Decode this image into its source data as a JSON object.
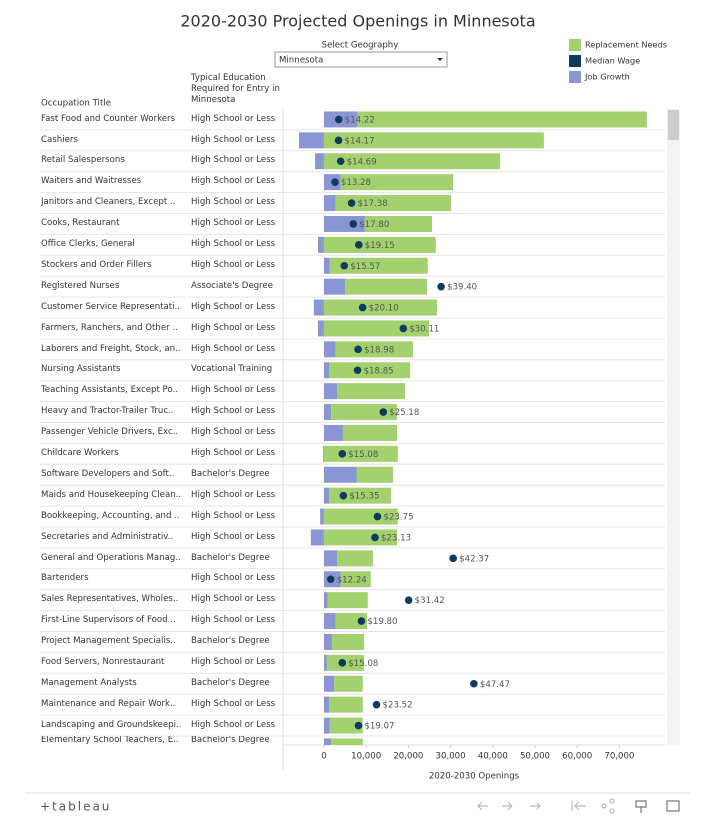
{
  "chart_data": {
    "type": "bar",
    "orientation": "horizontal",
    "stacked": true,
    "title": "2020-2030  Projected Openings in Minnesota",
    "filter_label": "Select Geography",
    "filter_value": "Minnesota",
    "row_header": "Occupation Title",
    "education_header": "Typical Education Required for Entry in Minnesota",
    "x_label": "2020-2030 Openings",
    "footer_logo": "+tableau",
    "categories": [
      "Fast Food and Counter Workers",
      "Cashiers",
      "Retail Salespersons",
      "Waiters and Waitresses",
      "Janitors and Cleaners, Except ..",
      "Cooks, Restaurant",
      "Office Clerks, General",
      "Stockers and Order Fillers",
      "Registered Nurses",
      "Customer Service Representati..",
      "Farmers, Ranchers, and Other ..",
      "Laborers and Freight, Stock, an..",
      "Nursing Assistants",
      "Teaching Assistants, Except Po..",
      "Heavy and Tractor-Trailer Truc..",
      "Passenger Vehicle Drivers, Exc..",
      "Childcare Workers",
      "Software Developers and Soft..",
      "Maids and Housekeeping Clean..",
      "Bookkeeping, Accounting, and ..",
      "Secretaries and Administrativ..",
      "General and Operations Manag..",
      "Bartenders",
      "Sales Representatives, Wholes..",
      "First-Line Supervisors of Food ..",
      "Project Management Specialis..",
      "Food Servers, Nonrestaurant",
      "Management Analysts",
      "Maintenance and Repair Work..",
      "Landscaping and Groundskeepi..",
      "Elementary School Teachers, E.."
    ],
    "education": [
      "High School or Less",
      "High School or Less",
      "High School or Less",
      "High School or Less",
      "High School or Less",
      "High School or Less",
      "High School or Less",
      "High School or Less",
      "Associate's Degree",
      "High School or Less",
      "High School or Less",
      "High School or Less",
      "Vocational Training",
      "High School or Less",
      "High School or Less",
      "High School or Less",
      "High School or Less",
      "Bachelor's Degree",
      "High School or Less",
      "High School or Less",
      "High School or Less",
      "Bachelor's Degree",
      "High School or Less",
      "High School or Less",
      "High School or Less",
      "Bachelor's Degree",
      "High School or Less",
      "Bachelor's Degree",
      "High School or Less",
      "High School or Less",
      "Bachelor's Degree"
    ],
    "series": [
      {
        "name": "Job Growth",
        "color": "#8a96d3",
        "values": [
          8000,
          -5900,
          -2100,
          4000,
          2800,
          9700,
          -1400,
          1400,
          5000,
          -2400,
          -1400,
          2800,
          1200,
          3100,
          1700,
          4500,
          -200,
          7800,
          1200,
          -900,
          -3100,
          3100,
          4000,
          900,
          2800,
          1900,
          700,
          2400,
          1200,
          1400,
          1700
        ]
      },
      {
        "name": "Replacement Needs",
        "color": "#a3d16e",
        "values": [
          68500,
          52100,
          41700,
          26600,
          27300,
          15900,
          26500,
          23200,
          19400,
          26800,
          24900,
          18300,
          19200,
          16100,
          15600,
          12800,
          17500,
          8600,
          14700,
          17500,
          17300,
          8500,
          7100,
          9500,
          7400,
          7600,
          8800,
          6800,
          8000,
          7800,
          7500
        ]
      },
      {
        "name": "Median Wage",
        "color": "#0e3a5d",
        "axis": "x2",
        "values": [
          14.22,
          14.17,
          14.69,
          13.28,
          17.38,
          17.8,
          19.15,
          15.57,
          39.4,
          20.1,
          30.11,
          18.98,
          18.85,
          null,
          25.18,
          null,
          15.08,
          null,
          15.35,
          23.75,
          23.13,
          42.37,
          12.24,
          31.42,
          19.8,
          null,
          15.08,
          47.47,
          23.52,
          19.07,
          null
        ],
        "value_labels": [
          "$14.22",
          "$14.17",
          "$14.69",
          "$13.28",
          "$17.38",
          "$17.80",
          "$19.15",
          "$15.57",
          "$39.40",
          "$20.10",
          "$30.11",
          "$18.98",
          "$18.85",
          null,
          "$25.18",
          null,
          "$15.08",
          null,
          "$15.35",
          "$23.75",
          "$23.13",
          "$42.37",
          "$12.24",
          "$31.42",
          "$19.80",
          null,
          "$15.08",
          "$47.47",
          "$23.52",
          "$19.07",
          null
        ]
      }
    ],
    "legend_order": [
      1,
      2,
      0
    ],
    "legend_position": "top-right",
    "xlim": [
      -9700,
      80800
    ],
    "x2lim": [
      0.5,
      94.5
    ],
    "xticks": [
      0,
      {
        "value": 10000,
        "label": "10,000"
      },
      {
        "value": 20000,
        "label": "20,000"
      },
      {
        "value": 30000,
        "label": "30,000"
      },
      {
        "value": 40000,
        "label": "40,000"
      },
      {
        "value": 50000,
        "label": "50,000"
      },
      {
        "value": 60000,
        "label": "60,000"
      },
      {
        "value": 70000,
        "label": "70,000"
      }
    ],
    "grid": false
  }
}
